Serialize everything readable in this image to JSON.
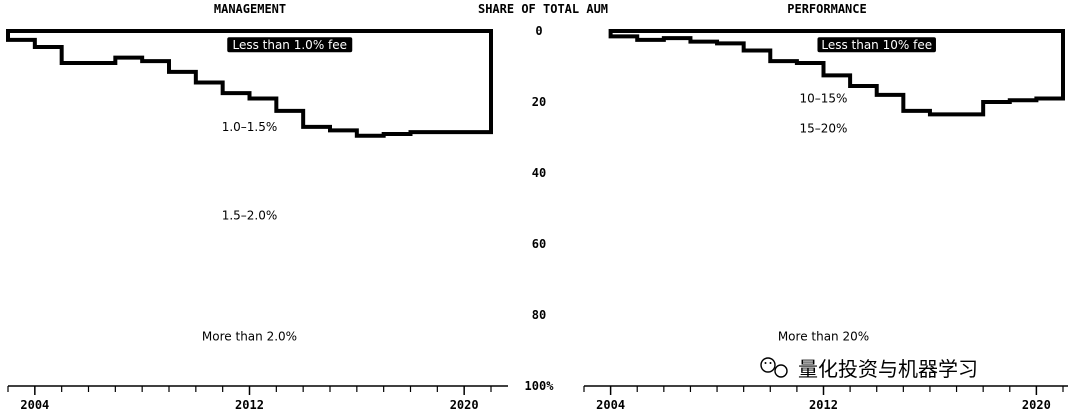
{
  "chart_data": [
    {
      "type": "area",
      "title": "MANAGEMENT",
      "x": [
        2003,
        2004,
        2005,
        2006,
        2007,
        2008,
        2009,
        2010,
        2011,
        2012,
        2013,
        2014,
        2015,
        2016,
        2017,
        2018,
        2019,
        2020
      ],
      "series": [
        {
          "name": "Less than 1.0% fee",
          "values": [
            2.5,
            4.5,
            9,
            9,
            7.5,
            8.5,
            11.5,
            14.5,
            17.5,
            19,
            22.5,
            27,
            28,
            29.5,
            29,
            28.5,
            28.5,
            28.5
          ]
        }
      ],
      "band_labels": [
        {
          "text": "Less than 1.0% fee",
          "x": 2013.5,
          "y": 4,
          "badge": true
        },
        {
          "text": "1.0–1.5%",
          "x": 2012,
          "y": 27
        },
        {
          "text": "1.5–2.0%",
          "x": 2012,
          "y": 52
        },
        {
          "text": "More than 2.0%",
          "x": 2012,
          "y": 86
        }
      ],
      "xticks": [
        2004,
        2012,
        2020
      ],
      "xlim": [
        2003,
        2021
      ],
      "ylim": [
        0,
        100
      ]
    },
    {
      "type": "area",
      "title": "PERFORMANCE",
      "x": [
        2004,
        2005,
        2006,
        2007,
        2008,
        2009,
        2010,
        2011,
        2012,
        2013,
        2014,
        2015,
        2016,
        2017,
        2018,
        2019,
        2020
      ],
      "series": [
        {
          "name": "Less than 10% fee",
          "values": [
            1.5,
            2.5,
            2,
            3,
            3.5,
            5.5,
            8.5,
            9,
            12.5,
            15.5,
            18,
            22.5,
            23.5,
            23.5,
            20,
            19.5,
            19
          ]
        }
      ],
      "band_labels": [
        {
          "text": "Less than 10% fee",
          "x": 2014,
          "y": 4,
          "badge": true
        },
        {
          "text": "10–15%",
          "x": 2012,
          "y": 19
        },
        {
          "text": "15–20%",
          "x": 2012,
          "y": 27.5
        },
        {
          "text": "More than 20%",
          "x": 2012,
          "y": 86
        }
      ],
      "xticks": [
        2004,
        2012,
        2020
      ],
      "xlim": [
        2003,
        2021
      ],
      "ylim": [
        0,
        100
      ]
    }
  ],
  "axis": {
    "title": "SHARE OF TOTAL AUM",
    "ticks": [
      "0",
      "20",
      "40",
      "60",
      "80",
      "100%"
    ]
  },
  "watermark": {
    "text": "量化投资与机器学习"
  }
}
